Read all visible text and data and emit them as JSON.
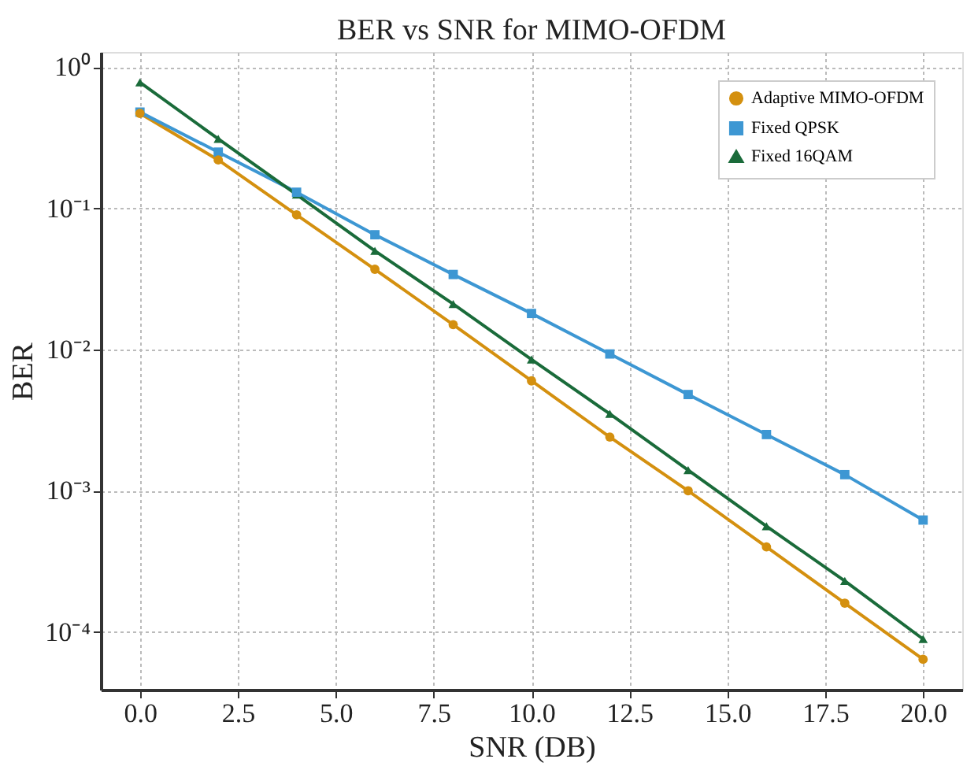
{
  "chart_data": {
    "type": "line",
    "title": "BER vs SNR for MIMO-OFDM",
    "xlabel": "SNR (DB)",
    "ylabel": "BER",
    "x": [
      0,
      2,
      4,
      6,
      8,
      10,
      12,
      14,
      16,
      18,
      20
    ],
    "series": [
      {
        "name": "Adaptive MIMO-OFDM",
        "color": "#d4900f",
        "marker": "circle",
        "values": [
          0.47,
          0.22,
          0.09,
          0.037,
          0.015,
          0.006,
          0.0024,
          0.001,
          0.0004,
          0.00016,
          6.4e-05
        ]
      },
      {
        "name": "Fixed QPSK",
        "color": "#3d97d3",
        "marker": "square",
        "values": [
          0.48,
          0.25,
          0.13,
          0.065,
          0.034,
          0.018,
          0.0093,
          0.0048,
          0.0025,
          0.0013,
          0.00062
        ]
      },
      {
        "name": "Fixed 16QAM",
        "color": "#1a6b3a",
        "marker": "triangle",
        "values": [
          0.78,
          0.31,
          0.125,
          0.05,
          0.021,
          0.0085,
          0.0035,
          0.0014,
          0.00056,
          0.00023,
          8.9e-05
        ]
      }
    ],
    "log": "y",
    "xlim": [
      -1,
      21
    ],
    "ylim": [
      3.9e-05,
      1.28
    ],
    "xticks": [
      {
        "value": 0,
        "label": "0.0"
      },
      {
        "value": 2.5,
        "label": "2.5"
      },
      {
        "value": 5,
        "label": "5.0"
      },
      {
        "value": 7.5,
        "label": "7.5"
      },
      {
        "value": 10,
        "label": "10.0"
      },
      {
        "value": 12.5,
        "label": "12.5"
      },
      {
        "value": 15,
        "label": "15.0"
      },
      {
        "value": 17.5,
        "label": "17.5"
      },
      {
        "value": 20,
        "label": "20.0"
      }
    ],
    "yticks": [
      {
        "value": 1,
        "label": "10⁰"
      },
      {
        "value": 0.1,
        "label": "10⁻¹"
      },
      {
        "value": 0.01,
        "label": "10⁻²"
      },
      {
        "value": 0.001,
        "label": "10⁻³"
      },
      {
        "value": 0.0001,
        "label": "10⁻⁴"
      }
    ],
    "grid": true,
    "legend": "top right",
    "line_style": "solid"
  }
}
